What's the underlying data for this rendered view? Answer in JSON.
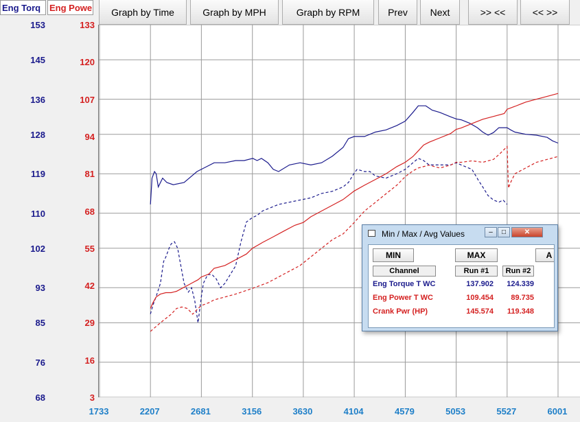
{
  "tabs": [
    "Eng Torq",
    "Eng Powe"
  ],
  "toolbar": {
    "graph_time": "Graph by Time",
    "graph_mph": "Graph by MPH",
    "graph_rpm": "Graph by RPM",
    "prev": "Prev",
    "next": "Next",
    "zoom_in": ">> <<",
    "zoom_out": "<< >>"
  },
  "colors": {
    "torque": "#1a1a8c",
    "power": "#d42020",
    "xaxis": "#1e7fc8",
    "grid": "#9a9a9a"
  },
  "chart_data": {
    "type": "line",
    "x_ticks": [
      "1733",
      "2207",
      "2681",
      "3156",
      "3630",
      "4104",
      "4579",
      "5053",
      "5527",
      "6001"
    ],
    "xlim": [
      1733,
      6001
    ],
    "left_axis": {
      "label": "Eng Torq",
      "ticks": [
        "153",
        "145",
        "136",
        "128",
        "119",
        "110",
        "102",
        "93",
        "85",
        "76",
        "68"
      ],
      "ylim": [
        68,
        153
      ]
    },
    "right_axis": {
      "label": "Eng Powe",
      "ticks": [
        "133",
        "120",
        "107",
        "94",
        "81",
        "68",
        "55",
        "42",
        "29",
        "16",
        "3"
      ],
      "ylim": [
        3,
        133
      ]
    },
    "grid": true,
    "series": [
      {
        "name": "Eng Torque T WC",
        "run": "Run #1",
        "axis": "left",
        "style": "solid",
        "color": "#1a1a8c",
        "x": [
          2207,
          2222,
          2245,
          2260,
          2280,
          2320,
          2360,
          2420,
          2520,
          2640,
          2720,
          2800,
          2900,
          3000,
          3080,
          3160,
          3200,
          3240,
          3300,
          3350,
          3400,
          3500,
          3600,
          3700,
          3800,
          3900,
          4000,
          4050,
          4104,
          4200,
          4300,
          4400,
          4500,
          4579,
          4650,
          4700,
          4770,
          4830,
          4900,
          5000,
          5053,
          5100,
          5180,
          5250,
          5300,
          5350,
          5400,
          5450,
          5527,
          5560,
          5600,
          5700,
          5800,
          5900,
          5950,
          6001
        ],
        "y": [
          112,
          118,
          119.5,
          119,
          116,
          118,
          117,
          116.5,
          117,
          119.5,
          120.5,
          121.5,
          121.5,
          122,
          122,
          122.5,
          122,
          122.5,
          121.5,
          120,
          119.5,
          121,
          121.5,
          121,
          121.5,
          123,
          125,
          127,
          127.5,
          127.5,
          128.5,
          129,
          130,
          131,
          133,
          134.5,
          134.5,
          133.5,
          133,
          132,
          131.5,
          131.3,
          130.5,
          129.5,
          128.5,
          127.8,
          128.4,
          129.5,
          129.5,
          129,
          128.5,
          128,
          127.8,
          127.3,
          126.5,
          126
        ]
      },
      {
        "name": "Eng Torque T WC",
        "run": "Run #2",
        "axis": "left",
        "style": "dashed",
        "color": "#1a1a8c",
        "x": [
          2207,
          2230,
          2260,
          2300,
          2330,
          2350,
          2380,
          2400,
          2430,
          2460,
          2490,
          2520,
          2560,
          2590,
          2620,
          2650,
          2681,
          2700,
          2740,
          2780,
          2820,
          2860,
          2900,
          2950,
          3000,
          3050,
          3100,
          3156,
          3200,
          3250,
          3300,
          3400,
          3500,
          3600,
          3700,
          3800,
          3900,
          4000,
          4050,
          4100,
          4130,
          4200,
          4250,
          4300,
          4400,
          4500,
          4579,
          4650,
          4700,
          4750,
          4800,
          4900,
          5000,
          5053,
          5100,
          5150,
          5200,
          5260,
          5300,
          5350,
          5400,
          5450,
          5490,
          5527
        ],
        "y": [
          87,
          89,
          91,
          94,
          99,
          100,
          102,
          103,
          103.5,
          102,
          98,
          94,
          92,
          93,
          90,
          85,
          91,
          94,
          96,
          96,
          95,
          93,
          94,
          96,
          98,
          103.5,
          108,
          109,
          109.5,
          110.5,
          111,
          112,
          112.5,
          113,
          113.5,
          114.5,
          115,
          116,
          117,
          119,
          120,
          119.5,
          119.5,
          118.5,
          118,
          119,
          120,
          121.5,
          122.5,
          122,
          121,
          121,
          121,
          121.5,
          121,
          120.5,
          120,
          117.5,
          116,
          114,
          113,
          112.5,
          113,
          112
        ]
      },
      {
        "name": "Eng Power T WC",
        "run": "Run #1",
        "axis": "right",
        "style": "solid",
        "color": "#d42020",
        "x": [
          2207,
          2230,
          2260,
          2300,
          2350,
          2400,
          2450,
          2500,
          2550,
          2600,
          2650,
          2681,
          2750,
          2800,
          2900,
          3000,
          3100,
          3156,
          3250,
          3350,
          3450,
          3550,
          3630,
          3700,
          3800,
          3900,
          4000,
          4104,
          4200,
          4300,
          4400,
          4500,
          4579,
          4650,
          4700,
          4750,
          4800,
          4900,
          5000,
          5053,
          5100,
          5200,
          5300,
          5400,
          5500,
          5527,
          5600,
          5700,
          5800,
          5900,
          6001
        ],
        "y": [
          34,
          36,
          38,
          39,
          39.5,
          39.5,
          40,
          41,
          42,
          43,
          44,
          45,
          46,
          48,
          49,
          51,
          53,
          55,
          57,
          59,
          61,
          63,
          64,
          66,
          68,
          70,
          72,
          75,
          77,
          79,
          81,
          83.5,
          85,
          87,
          89,
          91,
          92,
          93.5,
          95,
          96.5,
          97,
          98.5,
          100,
          101,
          102,
          103.5,
          104.5,
          106,
          107,
          108,
          109
        ]
      },
      {
        "name": "Eng Power T WC",
        "run": "Run #2",
        "axis": "right",
        "style": "dashed",
        "color": "#d42020",
        "x": [
          2207,
          2300,
          2400,
          2450,
          2500,
          2550,
          2600,
          2650,
          2681,
          2750,
          2800,
          2900,
          3000,
          3156,
          3300,
          3450,
          3600,
          3700,
          3800,
          3900,
          4000,
          4104,
          4200,
          4300,
          4400,
          4500,
          4579,
          4650,
          4700,
          4800,
          4900,
          5000,
          5053,
          5100,
          5200,
          5300,
          5400,
          5460,
          5500,
          5527,
          5540,
          5560,
          5600,
          5700,
          5800,
          5900,
          6001
        ],
        "y": [
          26,
          29,
          32,
          34,
          34.5,
          34,
          32,
          34,
          35,
          36,
          37,
          38,
          39,
          41,
          43,
          46,
          49,
          52,
          55,
          58,
          60,
          64,
          68,
          71,
          74,
          77,
          80,
          82,
          83,
          84,
          83,
          84,
          85,
          85,
          85.5,
          85,
          86,
          88,
          89.5,
          90.5,
          76,
          78,
          81,
          83,
          85,
          86,
          87
        ]
      },
      {
        "name": "Crank Pwr (HP)",
        "run": "Run #1",
        "axis": "right",
        "style": "none",
        "color": "#d42020",
        "x": [],
        "y": []
      }
    ]
  },
  "popup": {
    "title": "Min / Max / Avg Values",
    "min_label": "MIN",
    "max_label": "MAX",
    "avg_label": "A",
    "headers": [
      "Channel",
      "Run #1",
      "Run #2"
    ],
    "rows": [
      {
        "channel": "Eng Torque T WC",
        "run1": "137.902",
        "run2": "124.339",
        "color": "#1a1a8c"
      },
      {
        "channel": "Eng Power T WC",
        "run1": "109.454",
        "run2": "89.735",
        "color": "#d42020"
      },
      {
        "channel": "Crank Pwr (HP)",
        "run1": "145.574",
        "run2": "119.348",
        "color": "#d42020"
      }
    ]
  }
}
